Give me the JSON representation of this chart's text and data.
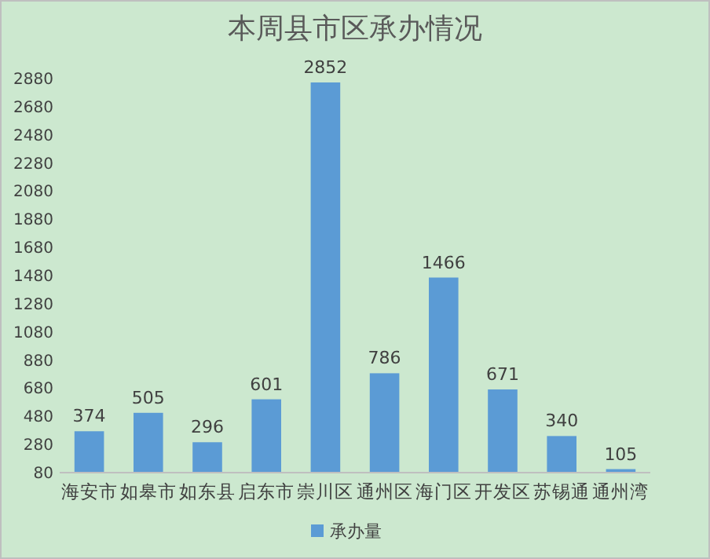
{
  "chart_data": {
    "type": "bar",
    "title": "本周县市区承办情况",
    "categories": [
      "海安市",
      "如皋市",
      "如东县",
      "启东市",
      "崇川区",
      "通州区",
      "海门区",
      "开发区",
      "苏锡通",
      "通州湾"
    ],
    "series": [
      {
        "name": "承办量",
        "color": "#5b9bd5",
        "values": [
          374,
          505,
          296,
          601,
          2852,
          786,
          1466,
          671,
          340,
          105
        ]
      }
    ],
    "ylim": [
      80,
      2880
    ],
    "yticks": [
      80,
      280,
      480,
      680,
      880,
      1080,
      1280,
      1480,
      1680,
      1880,
      2080,
      2280,
      2480,
      2680,
      2880
    ],
    "data_labels": true,
    "legend": "bottom"
  }
}
